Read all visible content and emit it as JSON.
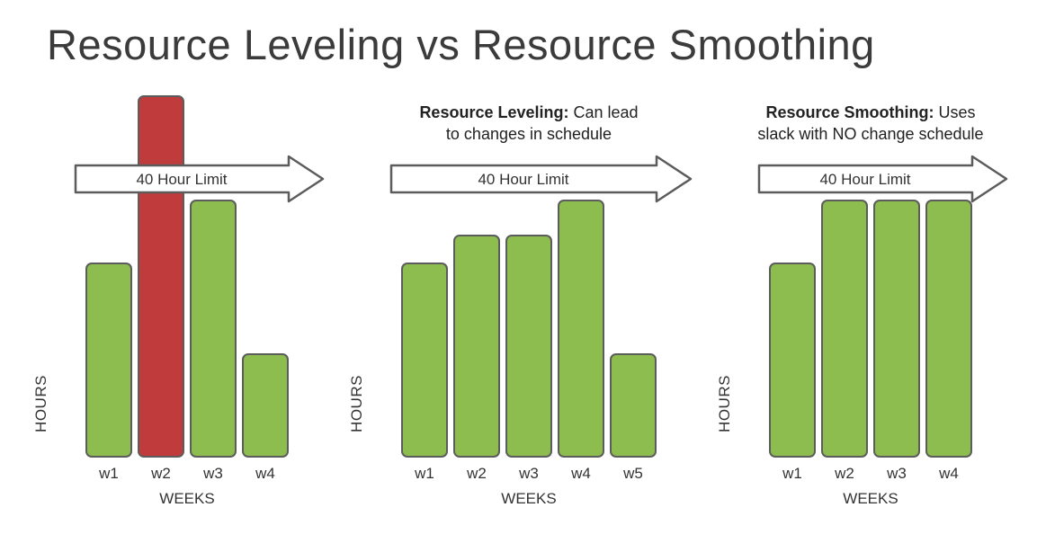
{
  "title": "Resource Leveling vs Resource Smoothing",
  "colors": {
    "green": "#8cbd4e",
    "red": "#c03b3b",
    "outline": "#5c5c5c",
    "arrow_fill": "#ffffff",
    "text": "#333333"
  },
  "chart_data": [
    {
      "type": "bar",
      "name": "overallocated-schedule",
      "categories": [
        "w1",
        "w2",
        "w3",
        "w4"
      ],
      "values": [
        28,
        52,
        37,
        15
      ],
      "bar_colors": [
        "#8cbd4e",
        "#c03b3b",
        "#8cbd4e",
        "#8cbd4e"
      ],
      "xlabel": "WEEKS",
      "ylabel": "HOURS",
      "ylim": [
        0,
        53
      ],
      "limit_line": {
        "value": 40,
        "label": "40 Hour Limit"
      }
    },
    {
      "type": "bar",
      "name": "resource-leveling",
      "caption": {
        "line1_bold": "Resource Leveling:",
        "line1_rest": " Can lead",
        "line2": "to changes in schedule"
      },
      "categories": [
        "w1",
        "w2",
        "w3",
        "w4",
        "w5"
      ],
      "values": [
        28,
        32,
        32,
        37,
        15
      ],
      "bar_colors": [
        "#8cbd4e",
        "#8cbd4e",
        "#8cbd4e",
        "#8cbd4e",
        "#8cbd4e"
      ],
      "xlabel": "WEEKS",
      "ylabel": "HOURS",
      "ylim": [
        0,
        53
      ],
      "limit_line": {
        "value": 40,
        "label": "40 Hour Limit"
      }
    },
    {
      "type": "bar",
      "name": "resource-smoothing",
      "caption": {
        "line1_bold": "Resource Smoothing:",
        "line1_rest": " Uses",
        "line2": "slack with NO change schedule"
      },
      "categories": [
        "w1",
        "w2",
        "w3",
        "w4"
      ],
      "values": [
        28,
        37,
        37,
        37
      ],
      "bar_colors": [
        "#8cbd4e",
        "#8cbd4e",
        "#8cbd4e",
        "#8cbd4e"
      ],
      "xlabel": "WEEKS",
      "ylabel": "HOURS",
      "ylim": [
        0,
        53
      ],
      "limit_line": {
        "value": 40,
        "label": "40 Hour Limit"
      }
    }
  ]
}
